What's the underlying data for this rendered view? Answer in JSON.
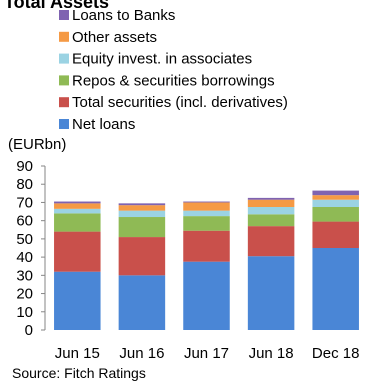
{
  "chart_data": {
    "type": "bar",
    "stacked": true,
    "title": "Total Assets",
    "unit_label": "(EURbn)",
    "source": "Source: Fitch Ratings",
    "categories": [
      "Jun 15",
      "Jun 16",
      "Jun 17",
      "Jun 18",
      "Dec 18"
    ],
    "ylim": [
      0,
      90
    ],
    "yticks": [
      "0",
      "10",
      "20",
      "30",
      "40",
      "50",
      "60",
      "70",
      "80",
      "90"
    ],
    "grid": false,
    "legend_position": "top",
    "series": [
      {
        "name": "Net loans",
        "color": "#4a86d6",
        "values": [
          32,
          30,
          37.5,
          40.5,
          45
        ]
      },
      {
        "name": "Total securities (incl. derivatives)",
        "color": "#c9504b",
        "values": [
          22,
          21,
          17,
          16.5,
          14.5
        ]
      },
      {
        "name": "Repos & securities borrowings",
        "color": "#8fba55",
        "values": [
          10,
          11,
          8,
          6.5,
          8
        ]
      },
      {
        "name": "Equity invest. in associates",
        "color": "#9bd3e3",
        "values": [
          2.5,
          3.5,
          3,
          4,
          4
        ]
      },
      {
        "name": "Other assets",
        "color": "#f59a45",
        "values": [
          3,
          3,
          4.5,
          4,
          2.5
        ]
      },
      {
        "name": "Loans to Banks",
        "color": "#7f63b1",
        "values": [
          1,
          1,
          0.5,
          1,
          2.5
        ]
      }
    ]
  }
}
